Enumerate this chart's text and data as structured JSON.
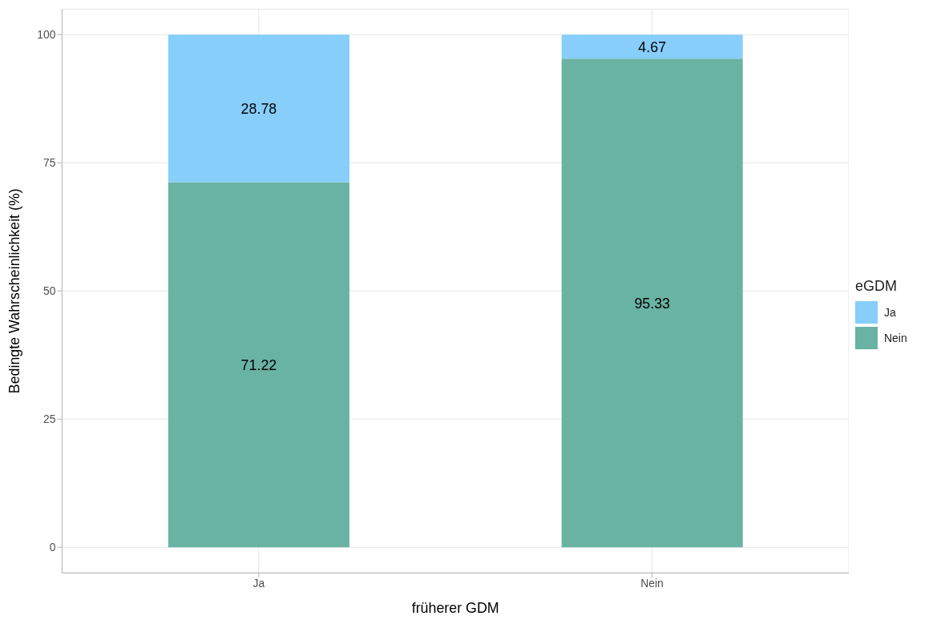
{
  "chart_data": {
    "type": "bar",
    "stacked": true,
    "xlabel": "früherer GDM",
    "ylabel": "Bedingte Wahrscheinlichkeit (%)",
    "legend_title": "eGDM",
    "categories": [
      "Ja",
      "Nein"
    ],
    "series": [
      {
        "name": "Nein",
        "color": "#69b3a2",
        "values": [
          71.22,
          95.33
        ]
      },
      {
        "name": "Ja",
        "color": "#87cefa",
        "values": [
          28.78,
          4.67
        ]
      }
    ],
    "ylim": [
      -5,
      105
    ],
    "yticks": [
      0,
      25,
      50,
      75,
      100
    ],
    "grid": true,
    "legend": "right",
    "data_labels": true
  }
}
